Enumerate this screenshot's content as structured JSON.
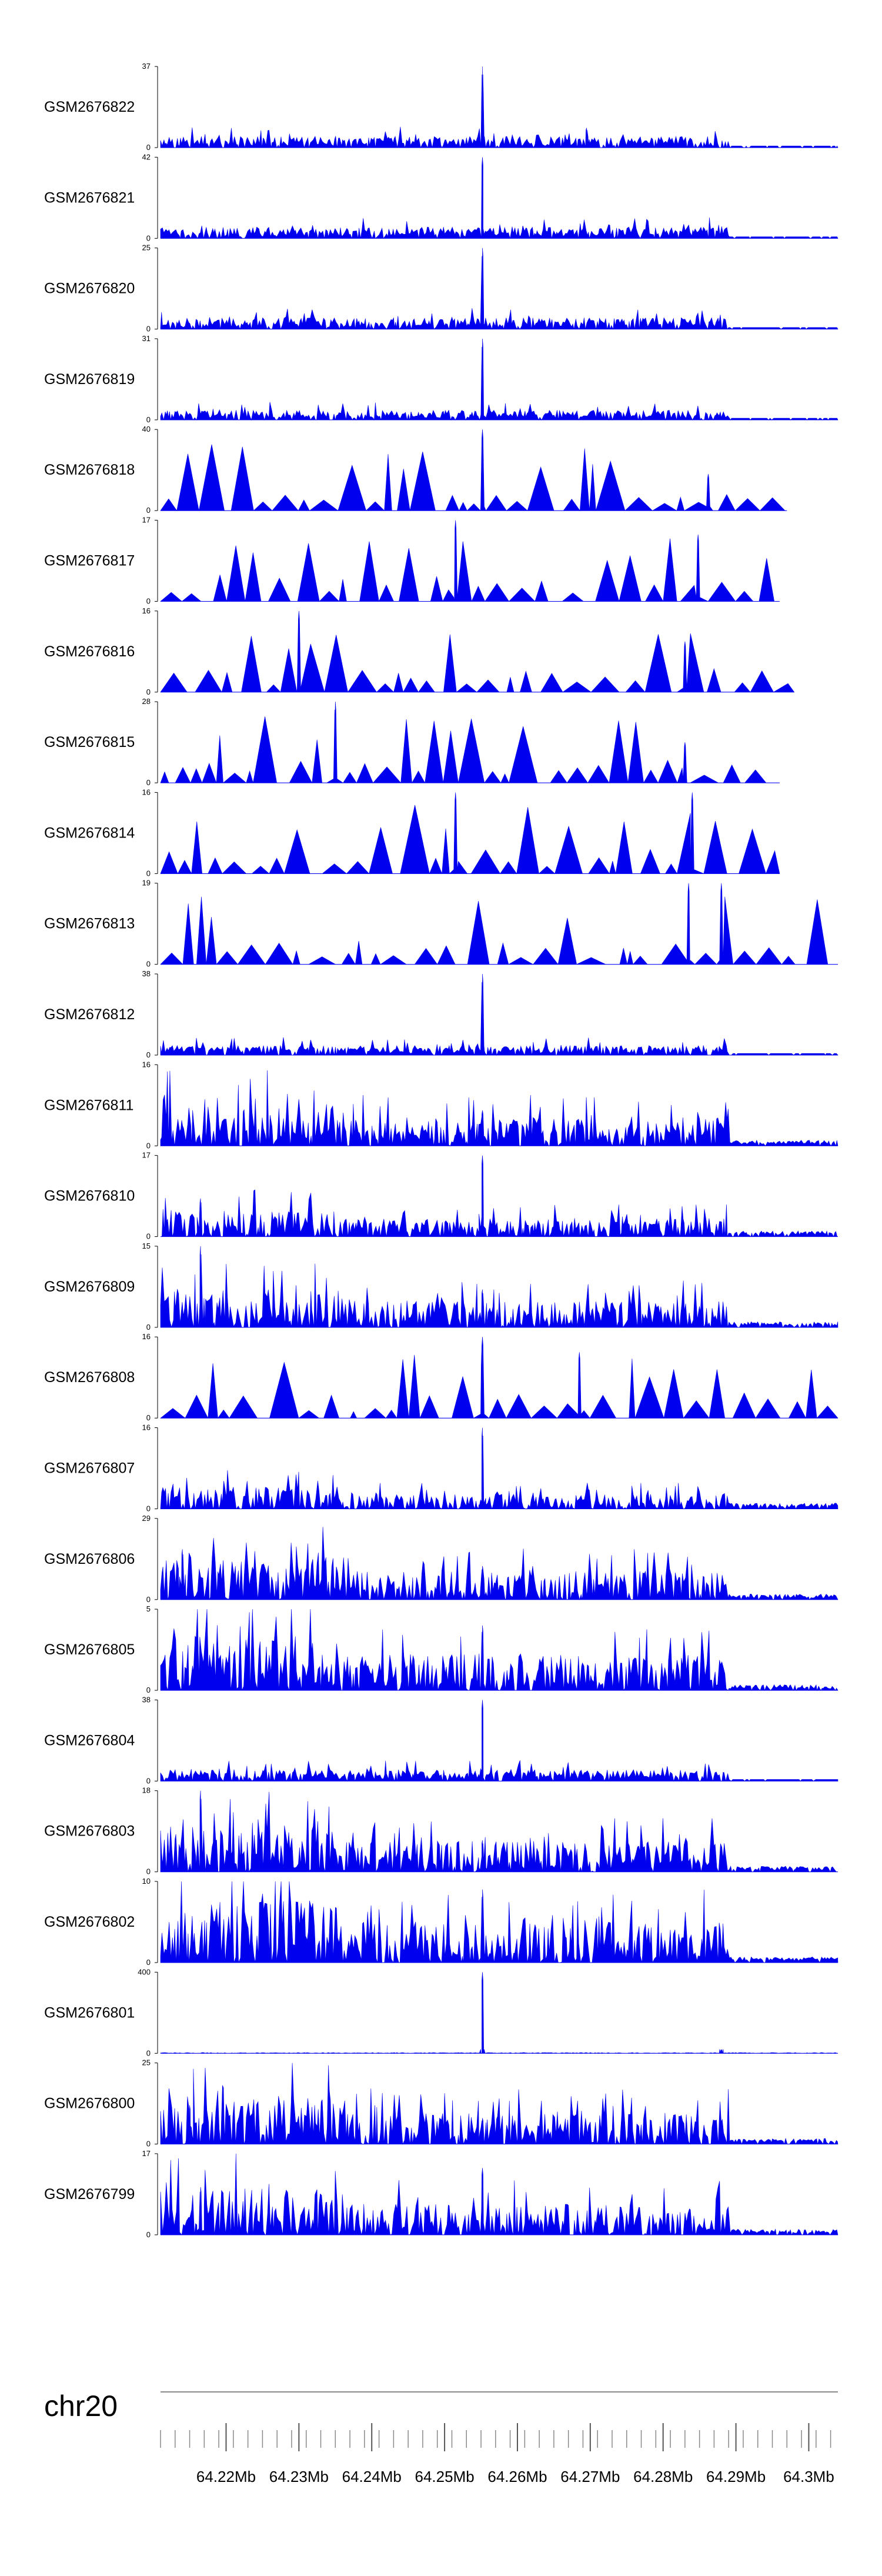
{
  "chart_data": {
    "type": "area",
    "title": "",
    "chromosome": "chr20",
    "fill_color": "#0000ee",
    "x_range_mb": [
      64.211,
      64.304
    ],
    "x_ticks": [
      "64.22Mb",
      "64.23Mb",
      "64.24Mb",
      "64.25Mb",
      "64.26Mb",
      "64.27Mb",
      "64.28Mb",
      "64.29Mb",
      "64.3Mb"
    ],
    "x_tick_values_mb": [
      64.22,
      64.23,
      64.24,
      64.25,
      64.26,
      64.27,
      64.28,
      64.29,
      64.3
    ],
    "series": [
      {
        "name": "GSM2676822",
        "ymax": 37,
        "style": "dense",
        "seed": 1,
        "peaks": [
          [
            64.2552,
            37,
            0.3
          ],
          [
            64.2695,
            9,
            0.3
          ]
        ],
        "base": 0.12,
        "end_mb": 64.304
      },
      {
        "name": "GSM2676821",
        "ymax": 42,
        "style": "dense",
        "seed": 2,
        "peaks": [
          [
            64.2552,
            42,
            0.3
          ]
        ],
        "base": 0.12,
        "end_mb": 64.304
      },
      {
        "name": "GSM2676820",
        "ymax": 25,
        "style": "dense",
        "seed": 3,
        "peaks": [
          [
            64.2552,
            25,
            0.35
          ]
        ],
        "base": 0.12,
        "end_mb": 64.304
      },
      {
        "name": "GSM2676819",
        "ymax": 31,
        "style": "dense",
        "seed": 4,
        "peaks": [
          [
            64.2552,
            31,
            0.3
          ]
        ],
        "base": 0.1,
        "end_mb": 64.304
      },
      {
        "name": "GSM2676818",
        "ymax": 40,
        "style": "sparse",
        "seed": 5,
        "peaks": [
          [
            64.2552,
            40,
            0.3
          ],
          [
            64.2862,
            18,
            0.3
          ]
        ],
        "base": 0.12,
        "end_mb": 64.297
      },
      {
        "name": "GSM2676817",
        "ymax": 17,
        "style": "sparse",
        "seed": 6,
        "peaks": [
          [
            64.2515,
            17,
            0.2
          ],
          [
            64.2848,
            14,
            0.25
          ]
        ],
        "base": 0.25,
        "end_mb": 64.296
      },
      {
        "name": "GSM2676816",
        "ymax": 16,
        "style": "sparse",
        "seed": 7,
        "peaks": [
          [
            64.23,
            16,
            0.25
          ],
          [
            64.283,
            10,
            0.25
          ]
        ],
        "base": 0.22,
        "end_mb": 64.298
      },
      {
        "name": "GSM2676815",
        "ymax": 28,
        "style": "sparse",
        "seed": 8,
        "peaks": [
          [
            64.235,
            28,
            0.3
          ],
          [
            64.283,
            14,
            0.25
          ]
        ],
        "base": 0.2,
        "end_mb": 64.296
      },
      {
        "name": "GSM2676814",
        "ymax": 16,
        "style": "sparse",
        "seed": 9,
        "peaks": [
          [
            64.2515,
            16,
            0.2
          ],
          [
            64.284,
            16,
            0.2
          ]
        ],
        "base": 0.22,
        "end_mb": 64.296
      },
      {
        "name": "GSM2676813",
        "ymax": 19,
        "style": "sparse",
        "seed": 10,
        "peaks": [
          [
            64.2835,
            19,
            0.2
          ],
          [
            64.288,
            19,
            0.2
          ]
        ],
        "base": 0.22,
        "end_mb": 64.304
      },
      {
        "name": "GSM2676812",
        "ymax": 38,
        "style": "dense",
        "seed": 11,
        "peaks": [
          [
            64.2552,
            38,
            0.35
          ]
        ],
        "base": 0.1,
        "end_mb": 64.304
      },
      {
        "name": "GSM2676811",
        "ymax": 16,
        "style": "hdense",
        "seed": 12,
        "peaks": [
          [
            64.2552,
            7,
            0.8
          ]
        ],
        "base": 0.35,
        "end_mb": 64.304
      },
      {
        "name": "GSM2676810",
        "ymax": 17,
        "style": "hdense",
        "seed": 13,
        "peaks": [
          [
            64.2552,
            17,
            0.6
          ],
          [
            64.2165,
            8,
            0.6
          ]
        ],
        "base": 0.22,
        "end_mb": 64.304
      },
      {
        "name": "GSM2676809",
        "ymax": 15,
        "style": "hdense",
        "seed": 14,
        "peaks": [
          [
            64.2165,
            15,
            0.8
          ],
          [
            64.2552,
            7,
            0.8
          ]
        ],
        "base": 0.32,
        "end_mb": 64.304
      },
      {
        "name": "GSM2676808",
        "ymax": 16,
        "style": "sparse",
        "seed": 15,
        "peaks": [
          [
            64.2552,
            16,
            0.2
          ],
          [
            64.2685,
            13,
            0.2
          ]
        ],
        "base": 0.24,
        "end_mb": 64.304
      },
      {
        "name": "GSM2676807",
        "ymax": 16,
        "style": "hdense",
        "seed": 16,
        "peaks": [
          [
            64.2552,
            16,
            0.6
          ]
        ],
        "base": 0.18,
        "end_mb": 64.304
      },
      {
        "name": "GSM2676806",
        "ymax": 29,
        "style": "hdense",
        "seed": 17,
        "peaks": [
          [
            64.2552,
            12,
            0.4
          ],
          [
            64.214,
            18,
            0.6
          ]
        ],
        "base": 0.35,
        "end_mb": 64.304
      },
      {
        "name": "GSM2676805",
        "ymax": 5,
        "style": "hdense",
        "seed": 18,
        "peaks": [
          [
            64.2552,
            4,
            0.4
          ]
        ],
        "base": 0.45,
        "end_mb": 64.304
      },
      {
        "name": "GSM2676804",
        "ymax": 38,
        "style": "dense",
        "seed": 19,
        "peaks": [
          [
            64.2552,
            38,
            0.5
          ]
        ],
        "base": 0.12,
        "end_mb": 64.304
      },
      {
        "name": "GSM2676803",
        "ymax": 18,
        "style": "hdense",
        "seed": 20,
        "peaks": [
          [
            64.2165,
            18,
            0.8
          ],
          [
            64.2552,
            7,
            0.6
          ]
        ],
        "base": 0.38,
        "end_mb": 64.304
      },
      {
        "name": "GSM2676802",
        "ymax": 10,
        "style": "hdense",
        "seed": 21,
        "peaks": [
          [
            64.2552,
            9,
            0.4
          ]
        ],
        "base": 0.5,
        "end_mb": 64.304
      },
      {
        "name": "GSM2676801",
        "ymax": 400,
        "style": "flat",
        "seed": 22,
        "peaks": [
          [
            64.2552,
            400,
            0.25
          ],
          [
            64.288,
            18,
            0.3
          ]
        ],
        "base": 0.02,
        "end_mb": 64.304
      },
      {
        "name": "GSM2676800",
        "ymax": 25,
        "style": "hdense",
        "seed": 23,
        "peaks": [
          [
            64.2552,
            8,
            0.6
          ],
          [
            64.215,
            12,
            0.6
          ]
        ],
        "base": 0.38,
        "end_mb": 64.304
      },
      {
        "name": "GSM2676799",
        "ymax": 17,
        "style": "hdense",
        "seed": 24,
        "peaks": [
          [
            64.2552,
            14,
            0.4
          ],
          [
            64.2165,
            10,
            0.6
          ]
        ],
        "base": 0.38,
        "end_mb": 64.304
      }
    ]
  }
}
